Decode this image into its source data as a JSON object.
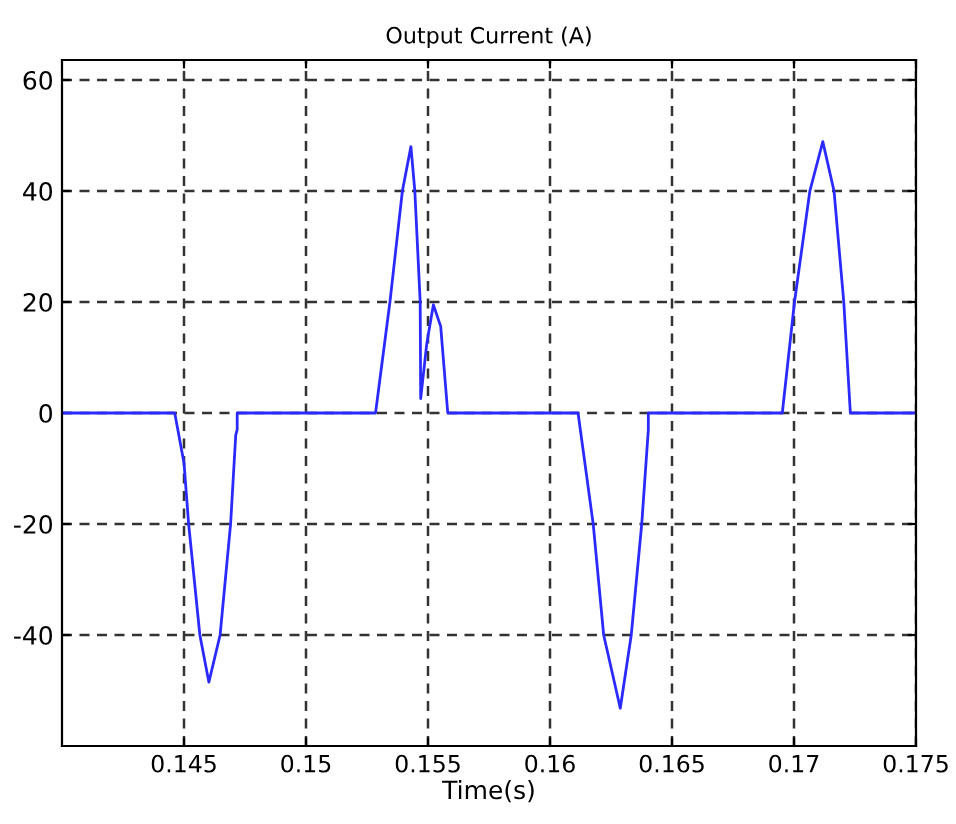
{
  "chart_data": {
    "type": "line",
    "title": "Output Current (A)",
    "xlabel": "Time(s)",
    "series": [
      {
        "color": "#2a2aff",
        "x": [
          0.14,
          0.14462,
          0.145,
          0.14519,
          0.14565,
          0.14602,
          0.14648,
          0.14691,
          0.14712,
          0.14718,
          0.14718,
          0.15285,
          0.15344,
          0.15395,
          0.1543,
          0.15446,
          0.15468,
          0.1547,
          0.15495,
          0.15522,
          0.15552,
          0.15581,
          0.16115,
          0.16177,
          0.1622,
          0.16288,
          0.16333,
          0.16376,
          0.16403,
          0.16403,
          0.16952,
          0.17002,
          0.17065,
          0.17118,
          0.17164,
          0.17204,
          0.17231,
          0.175
        ],
        "values": [
          0,
          0,
          -9,
          -20,
          -40,
          -48.5,
          -40,
          -20,
          -4,
          -3,
          0,
          0,
          20,
          40,
          48,
          40,
          20,
          2.6,
          12.5,
          19.5,
          15.6,
          0,
          0,
          -20,
          -40,
          -53.2,
          -40,
          -20,
          -3,
          0,
          0,
          20,
          40,
          48.9,
          40,
          20,
          0,
          0
        ]
      }
    ],
    "xlim": [
      0.14,
      0.175
    ],
    "xticks": [
      0.145,
      0.15,
      0.155,
      0.16,
      0.165,
      0.17,
      0.175
    ],
    "ylim": [
      -60,
      63.6
    ],
    "yticks": [
      -40,
      -20,
      0,
      20,
      40,
      60
    ],
    "grid": true,
    "line_style": "solid",
    "marker": "none",
    "legend": false
  }
}
